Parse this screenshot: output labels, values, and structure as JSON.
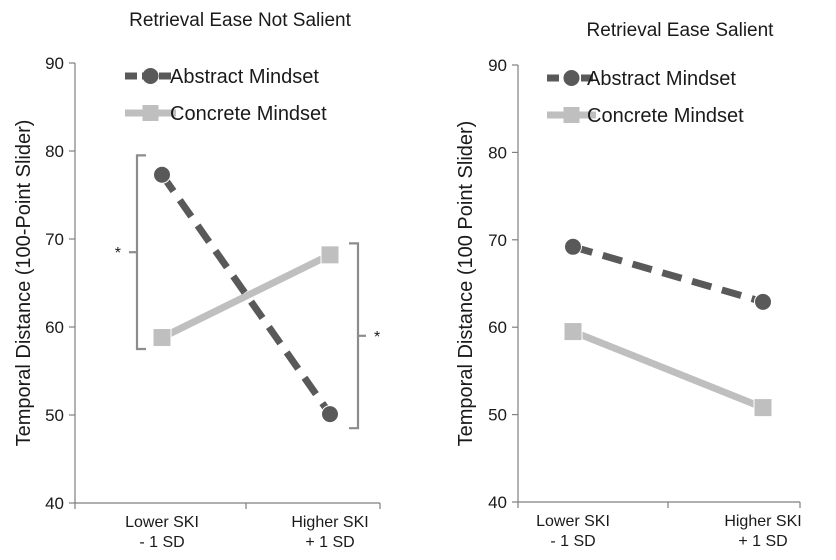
{
  "chart_data": [
    {
      "type": "line",
      "title": "Retrieval Ease Not Salient",
      "ylabel": "Temporal Distance (100-Point Slider)",
      "xlabel": "",
      "ylim": [
        40,
        90
      ],
      "yticks": [
        40,
        50,
        60,
        70,
        80,
        90
      ],
      "categories": [
        [
          "Lower SKI",
          "- 1 SD"
        ],
        [
          "Higher SKI",
          "+ 1 SD"
        ]
      ],
      "legend": "top-left",
      "grid": false,
      "series": [
        {
          "name": "Abstract Mindset",
          "values": [
            77.3,
            50.1
          ],
          "color": "#595959",
          "dash": true,
          "marker": "circle"
        },
        {
          "name": "Concrete Mindset",
          "values": [
            58.8,
            68.2
          ],
          "color": "#bfbfbf",
          "dash": false,
          "marker": "square"
        }
      ],
      "annotations": [
        {
          "type": "bracket",
          "category": 0,
          "from": 57.5,
          "to": 79.5,
          "label": "*"
        },
        {
          "type": "bracket",
          "category": 1,
          "from": 48.5,
          "to": 69.5,
          "label": "*"
        }
      ]
    },
    {
      "type": "line",
      "title": "Retrieval Ease Salient",
      "ylabel": "Temporal Distance (100 Point Slider)",
      "xlabel": "",
      "ylim": [
        40,
        90
      ],
      "yticks": [
        40,
        50,
        60,
        70,
        80,
        90
      ],
      "categories": [
        [
          "Lower SKI",
          "- 1 SD"
        ],
        [
          "Higher SKI",
          "+ 1 SD"
        ]
      ],
      "legend": "top-left",
      "grid": false,
      "series": [
        {
          "name": "Abstract Mindset",
          "values": [
            69.2,
            62.9
          ],
          "color": "#595959",
          "dash": true,
          "marker": "circle"
        },
        {
          "name": "Concrete Mindset",
          "values": [
            59.5,
            50.8
          ],
          "color": "#bfbfbf",
          "dash": false,
          "marker": "square"
        }
      ],
      "annotations": []
    }
  ]
}
